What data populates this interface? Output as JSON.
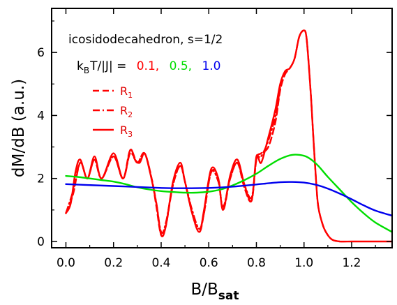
{
  "chart_data": {
    "type": "line",
    "xlabel": "B/B",
    "xlabel_sub": "sat",
    "ylabel": "dM/dB (a.u.)",
    "xlim": [
      -0.06,
      1.37
    ],
    "ylim": [
      -0.2,
      7.4
    ],
    "xticks": [
      "0.0",
      "0.2",
      "0.4",
      "0.6",
      "0.8",
      "1.0",
      "1.2"
    ],
    "yticks": [
      "0",
      "2",
      "4",
      "6"
    ],
    "annotation": {
      "line1": "icosidodecahedron, s=1/2",
      "line2_prefix": "k",
      "line2_sub": "B",
      "line2_rest": "T/|J| =",
      "temps": [
        {
          "label": "0.1,",
          "color": "#ff0000"
        },
        {
          "label": "0.5,",
          "color": "#00dd00"
        },
        {
          "label": "1.0",
          "color": "#0000ee"
        }
      ]
    },
    "legend": [
      {
        "label": "R",
        "sub": "1",
        "style": "dashed"
      },
      {
        "label": "R",
        "sub": "2",
        "style": "dashdot"
      },
      {
        "label": "R",
        "sub": "3",
        "style": "solid"
      }
    ],
    "series": [
      {
        "temperature": "0.1",
        "legend": "R3",
        "style": "solid",
        "color": "#ff0000",
        "x": [
          0.0,
          0.02,
          0.04,
          0.06,
          0.09,
          0.12,
          0.15,
          0.2,
          0.24,
          0.27,
          0.29,
          0.31,
          0.33,
          0.35,
          0.38,
          0.4,
          0.42,
          0.45,
          0.48,
          0.5,
          0.53,
          0.56,
          0.58,
          0.61,
          0.64,
          0.66,
          0.69,
          0.72,
          0.75,
          0.78,
          0.8,
          0.82,
          0.85,
          0.88,
          0.9,
          0.92,
          0.94,
          0.96,
          0.98,
          1.0,
          1.01,
          1.02,
          1.03,
          1.04,
          1.05,
          1.06,
          1.08,
          1.1,
          1.12,
          1.15,
          1.2,
          1.25,
          1.3,
          1.37
        ],
        "y": [
          0.9,
          1.2,
          2.2,
          2.6,
          2.0,
          2.7,
          2.0,
          2.8,
          2.0,
          2.9,
          2.6,
          2.5,
          2.8,
          2.3,
          1.2,
          0.2,
          0.5,
          1.9,
          2.5,
          1.9,
          0.9,
          0.3,
          1.0,
          2.3,
          2.0,
          1.0,
          2.1,
          2.6,
          1.8,
          1.3,
          2.7,
          2.5,
          3.3,
          4.2,
          5.0,
          5.4,
          5.5,
          5.8,
          6.5,
          6.7,
          6.5,
          5.6,
          4.5,
          3.2,
          2.0,
          1.1,
          0.5,
          0.2,
          0.05,
          0.0,
          0.0,
          0.0,
          0.0,
          0.0
        ]
      },
      {
        "temperature": "0.1",
        "legend": "R1",
        "style": "dashed",
        "color": "#ff0000",
        "x": [
          0.0,
          0.03,
          0.06,
          0.09,
          0.12,
          0.15,
          0.2,
          0.24,
          0.27,
          0.3,
          0.33,
          0.36,
          0.38,
          0.4,
          0.42,
          0.45,
          0.48,
          0.5,
          0.53,
          0.56,
          0.58,
          0.61,
          0.64,
          0.66,
          0.69,
          0.72,
          0.75,
          0.78,
          0.8,
          0.82,
          0.85,
          0.88,
          0.9,
          0.92,
          0.94,
          0.96,
          0.98,
          1.0,
          1.01,
          1.02,
          1.03,
          1.04,
          1.05,
          1.06,
          1.08,
          1.1,
          1.12,
          1.15
        ],
        "y": [
          0.9,
          1.5,
          2.5,
          2.0,
          2.6,
          2.0,
          2.7,
          2.0,
          2.9,
          2.5,
          2.8,
          2.0,
          1.1,
          0.2,
          0.5,
          1.8,
          2.4,
          1.9,
          0.9,
          0.3,
          0.9,
          2.2,
          2.0,
          1.0,
          2.0,
          2.5,
          1.7,
          1.3,
          2.6,
          2.8,
          3.0,
          3.8,
          4.8,
          5.3,
          5.5,
          5.8,
          6.5,
          6.7,
          6.5,
          5.6,
          4.5,
          3.2,
          2.0,
          1.1,
          0.5,
          0.2,
          0.05,
          0.0
        ]
      },
      {
        "temperature": "0.1",
        "legend": "R2",
        "style": "dashdot",
        "color": "#ff0000",
        "x": [
          0.0,
          0.03,
          0.06,
          0.09,
          0.12,
          0.15,
          0.2,
          0.24,
          0.27,
          0.3,
          0.33,
          0.36,
          0.38,
          0.4,
          0.42,
          0.45,
          0.48,
          0.5,
          0.53,
          0.56,
          0.58,
          0.61,
          0.64,
          0.66,
          0.69,
          0.72,
          0.75,
          0.78,
          0.8,
          0.82,
          0.85,
          0.88,
          0.9
        ],
        "y": [
          0.9,
          1.6,
          2.5,
          2.0,
          2.6,
          2.0,
          2.7,
          2.0,
          2.8,
          2.5,
          2.8,
          2.0,
          1.2,
          0.3,
          0.6,
          1.8,
          2.4,
          1.9,
          1.0,
          0.4,
          0.9,
          2.2,
          1.9,
          1.1,
          2.0,
          2.5,
          1.8,
          1.4,
          2.6,
          2.7,
          3.2,
          4.0,
          4.9
        ]
      },
      {
        "temperature": "0.5",
        "legend": "",
        "style": "solid",
        "color": "#00dd00",
        "x": [
          0.0,
          0.05,
          0.1,
          0.15,
          0.2,
          0.25,
          0.3,
          0.35,
          0.4,
          0.45,
          0.5,
          0.55,
          0.6,
          0.65,
          0.7,
          0.75,
          0.8,
          0.85,
          0.9,
          0.95,
          1.0,
          1.03,
          1.06,
          1.1,
          1.15,
          1.2,
          1.25,
          1.3,
          1.37
        ],
        "y": [
          2.08,
          2.05,
          2.0,
          1.95,
          1.9,
          1.82,
          1.72,
          1.65,
          1.6,
          1.57,
          1.55,
          1.55,
          1.58,
          1.65,
          1.78,
          1.95,
          2.15,
          2.4,
          2.62,
          2.75,
          2.72,
          2.6,
          2.4,
          2.05,
          1.65,
          1.25,
          0.9,
          0.6,
          0.3
        ]
      },
      {
        "temperature": "1.0",
        "legend": "",
        "style": "solid",
        "color": "#0000ee",
        "x": [
          0.0,
          0.1,
          0.2,
          0.3,
          0.4,
          0.5,
          0.6,
          0.7,
          0.8,
          0.9,
          0.95,
          1.0,
          1.05,
          1.1,
          1.15,
          1.2,
          1.25,
          1.3,
          1.37
        ],
        "y": [
          1.82,
          1.79,
          1.76,
          1.73,
          1.7,
          1.69,
          1.7,
          1.74,
          1.81,
          1.88,
          1.89,
          1.87,
          1.8,
          1.68,
          1.52,
          1.34,
          1.15,
          0.98,
          0.82
        ]
      }
    ]
  }
}
